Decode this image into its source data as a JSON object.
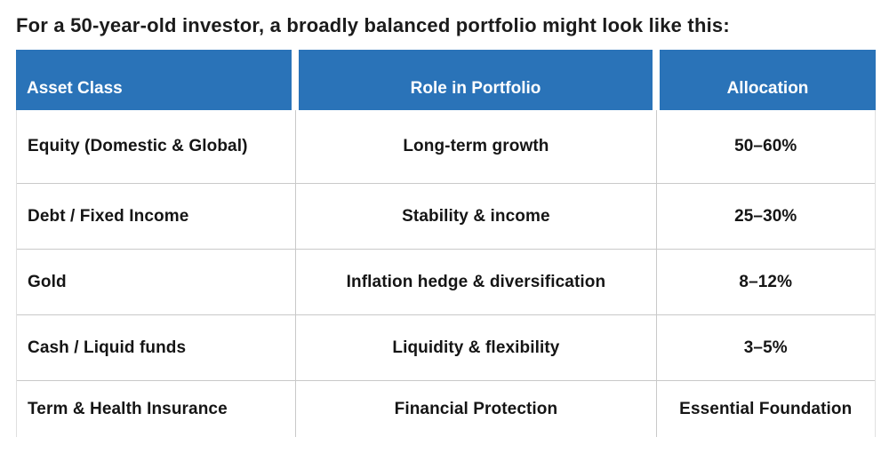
{
  "title": "For a 50-year-old investor, a broadly balanced portfolio might look like this:",
  "colors": {
    "header_bg": "#2a73b8",
    "header_text": "#ffffff",
    "body_text": "#151515",
    "grid_line": "#c9c9c9"
  },
  "table": {
    "headers": [
      "Asset Class",
      "Role in Portfolio",
      "Allocation"
    ],
    "rows": [
      {
        "asset": "Equity (Domestic & Global)",
        "role": "Long-term growth",
        "allocation": "50–60%"
      },
      {
        "asset": "Debt / Fixed Income",
        "role": "Stability & income",
        "allocation": "25–30%"
      },
      {
        "asset": "Gold",
        "role": "Inflation hedge & diversification",
        "allocation": "8–12%"
      },
      {
        "asset": "Cash / Liquid funds",
        "role": "Liquidity & flexibility",
        "allocation": "3–5%"
      },
      {
        "asset": "Term & Health Insurance",
        "role": "Financial Protection",
        "allocation": "Essential Foundation"
      }
    ]
  },
  "chart_data": {
    "type": "table",
    "title": "For a 50-year-old investor, a broadly balanced portfolio might look like this:",
    "columns": [
      "Asset Class",
      "Role in Portfolio",
      "Allocation"
    ],
    "rows": [
      [
        "Equity (Domestic & Global)",
        "Long-term growth",
        "50–60%"
      ],
      [
        "Debt / Fixed Income",
        "Stability & income",
        "25–30%"
      ],
      [
        "Gold",
        "Inflation hedge & diversification",
        "8–12%"
      ],
      [
        "Cash / Liquid funds",
        "Liquidity & flexibility",
        "3–5%"
      ],
      [
        "Term & Health Insurance",
        "Financial Protection",
        "Essential Foundation"
      ]
    ],
    "layout": {
      "header_style": "blue blocks with white gaps between columns",
      "grid": "light gray row and column dividers in body"
    }
  }
}
